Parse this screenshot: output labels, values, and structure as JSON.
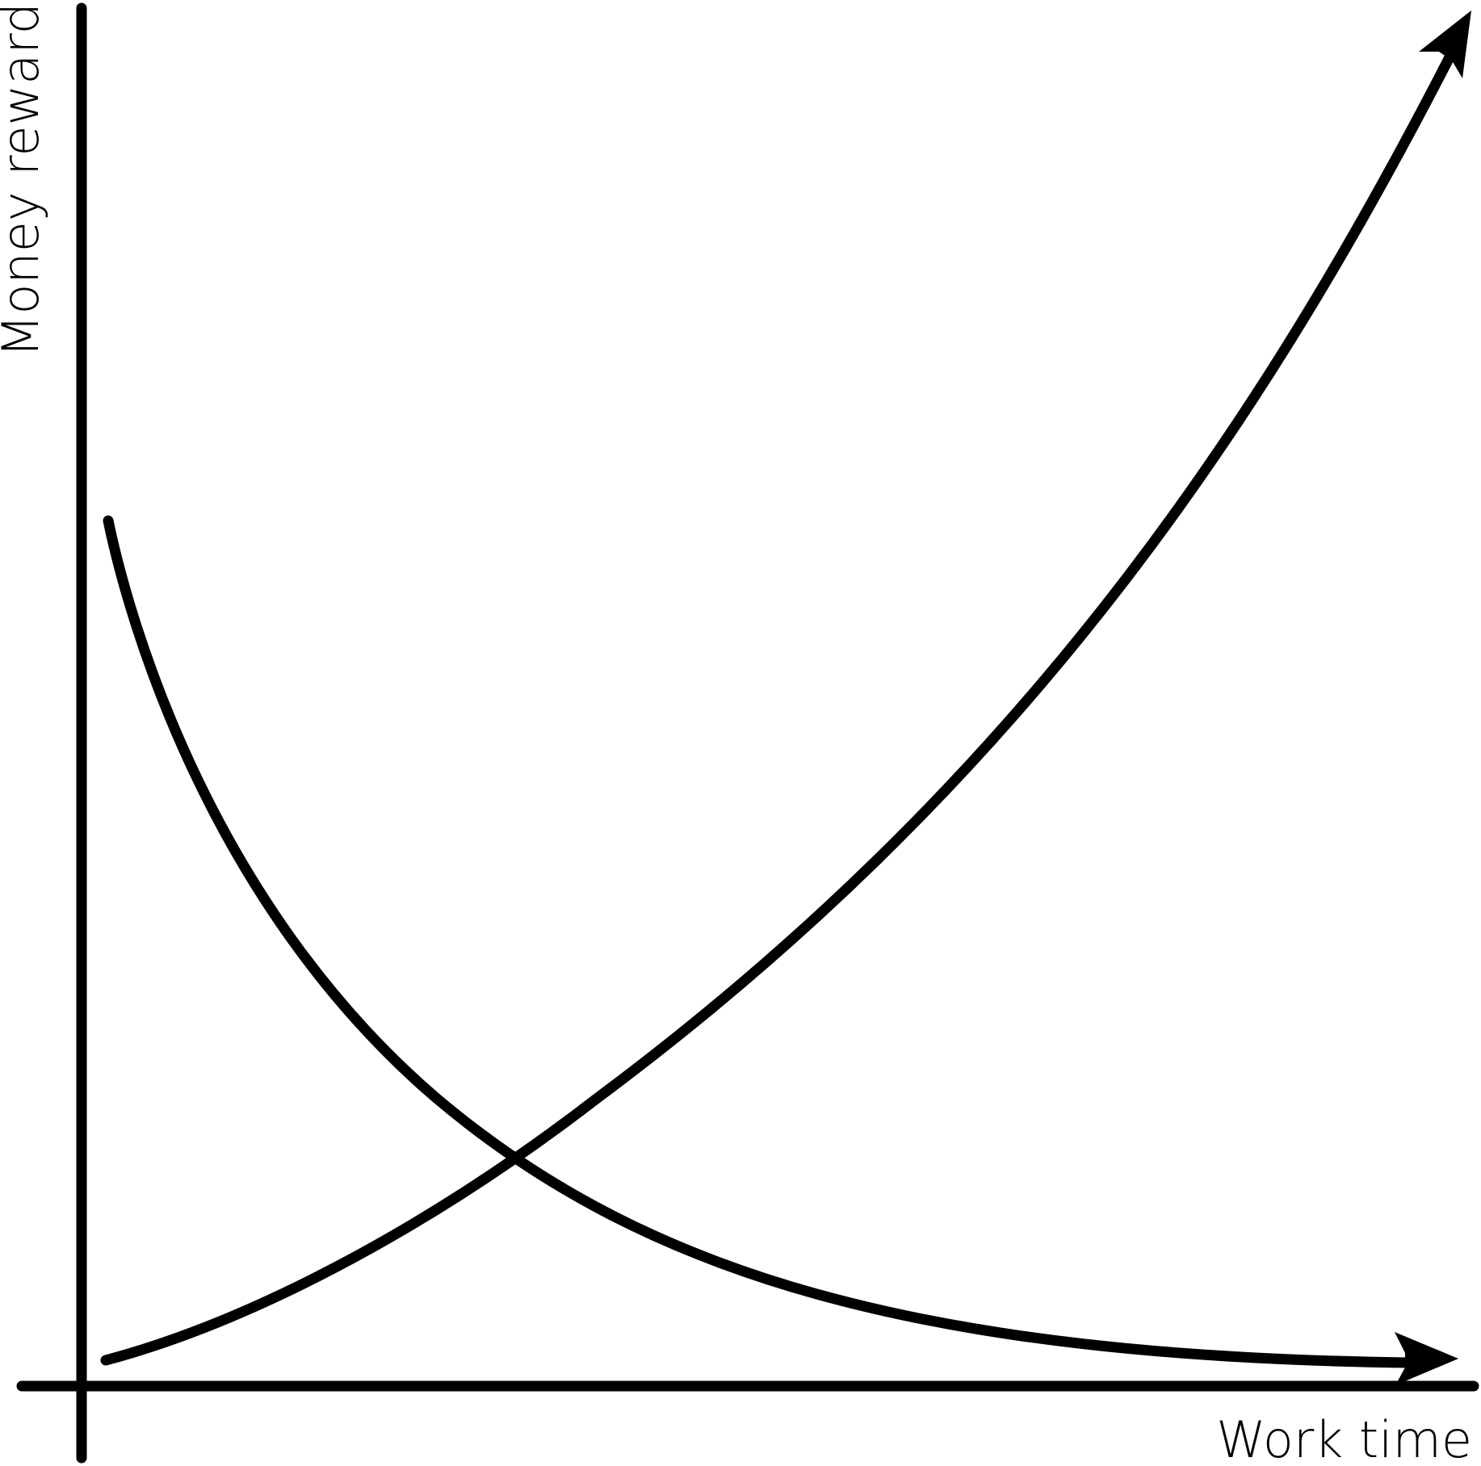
{
  "labels": {
    "x_axis": "Work time",
    "y_axis": "Money reward"
  },
  "colors": {
    "ink": "#000000",
    "background": "#ffffff"
  },
  "curves": [
    {
      "id": "rising",
      "shape": "increasing convex curve with arrowhead pointing up-right"
    },
    {
      "id": "falling",
      "shape": "decreasing curve approaching the x-axis with arrowhead pointing right"
    }
  ]
}
